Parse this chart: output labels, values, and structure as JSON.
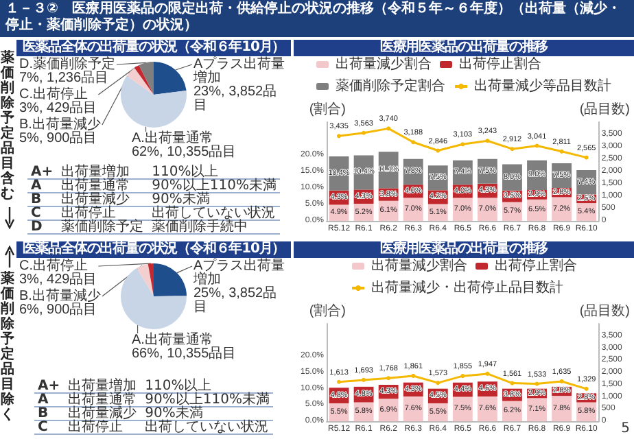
{
  "chart_data": [
    {
      "type": "pie",
      "title": "１－３②　医療用医薬品の限定出荷・供給停止の状況の推移（令和５年～６年度）（出荷量（減少・停止・薬価削除予定）の状況）",
      "subtitle": "医薬品全体の出荷量の状況（令和６年10月）",
      "categories": [
        "Aプラス出荷量増加",
        "A.出荷量通常",
        "B.出荷量減少",
        "C.出荷停止",
        "D.薬価削除予定"
      ],
      "values": [
        3852,
        10355,
        900,
        429,
        1236
      ],
      "value_labels": [
        "23%, 3,852品目",
        "62%, 10,355品目",
        "5%, 900品目",
        "3%, 429品目",
        "7%, 1,236品目"
      ],
      "colors": [
        "#1f4e8c",
        "#c8d5e6",
        "#f4cfd0",
        "#c5282f",
        "#7f7f7f"
      ],
      "annotations": [
        "薬価削除予定品目含む",
        "A+",
        "出荷量増加",
        "110%以上",
        "A",
        "出荷量通常",
        "90%以上110%未満",
        "B",
        "出荷量減少",
        "90%未満",
        "C",
        "出荷停止",
        "出荷していない状況",
        "D",
        "薬価削除予定",
        "薬価削除手続中"
      ]
    },
    {
      "type": "bar",
      "title": "医療用医薬品の出荷量の推移",
      "stacked": true,
      "legend": "top",
      "grid": false,
      "ylabel": "(割合)",
      "y2label": "(品目数)",
      "categories": [
        "R5.12",
        "R6.1",
        "R6.2",
        "R6.3",
        "R6.4",
        "R6.5",
        "R6.6",
        "R6.7",
        "R6.8",
        "R6.9",
        "R6.10"
      ],
      "ylim": [
        0,
        30
      ],
      "yticks": [
        {
          "value": 0,
          "label": "0.0%"
        },
        {
          "value": 5,
          "label": "5.0%"
        },
        {
          "value": 10,
          "label": "10.0%"
        },
        {
          "value": 15,
          "label": "15.0%"
        },
        {
          "value": 20,
          "label": "20.0%"
        }
      ],
      "y2lim": [
        0,
        4000
      ],
      "y2ticks": [
        0,
        {
          "value": 500,
          "label": "500"
        },
        {
          "value": 1000,
          "label": "1,000"
        },
        {
          "value": 1500,
          "label": "1,500"
        },
        {
          "value": 2000,
          "label": "2,000"
        },
        {
          "value": 2500,
          "label": "2,500"
        },
        {
          "value": 3000,
          "label": "3,000"
        },
        {
          "value": 3500,
          "label": "3,500"
        }
      ],
      "series": [
        {
          "name": "出荷量減少割合",
          "color": "#f4c7cb",
          "values": [
            4.9,
            5.2,
            6.1,
            7.0,
            5.1,
            7.0,
            7.0,
            5.7,
            6.5,
            7.2,
            5.4
          ],
          "value_labels": [
            "4.9%",
            "5.2%",
            "6.1%",
            "7.0%",
            "5.1%",
            "7.0%",
            "7.0%",
            "5.7%",
            "6.5%",
            "7.2%",
            "5.4%"
          ]
        },
        {
          "name": "出荷停止割合",
          "color": "#c0282d",
          "values": [
            4.3,
            4.3,
            3.8,
            4.0,
            4.2,
            4.0,
            4.3,
            3.5,
            2.9,
            2.8,
            2.6
          ],
          "value_labels": [
            "4.3%",
            "4.3%",
            "3.8%",
            "4.0%",
            "4.2%",
            "4.0%",
            "4.3%",
            "3.5%",
            "2.9%",
            "2.8%",
            "2.6%"
          ]
        },
        {
          "name": "薬価削除予定割合",
          "color": "#7f7f7f",
          "values": [
            10.4,
            10.4,
            11.1,
            7.8,
            7.5,
            7.4,
            7.5,
            8.0,
            9.0,
            7.5,
            7.4
          ],
          "value_labels": [
            "10.4%",
            "10.4%",
            "11.1%",
            "7.8%",
            "7.5%",
            "7.4%",
            "7.5%",
            "8.0%",
            "9.0%",
            "7.5%",
            "7.4%"
          ]
        },
        {
          "name": "出荷量減少等品目数計",
          "type": "line",
          "axis": "y2",
          "marker": "circle",
          "color": "#f5b800",
          "values": [
            3435,
            3563,
            3740,
            3188,
            2846,
            3103,
            3243,
            2912,
            3041,
            2811,
            2565
          ],
          "value_labels": [
            "3,435",
            "3,563",
            "3,740",
            "3,188",
            "2,846",
            "3,103",
            "3,243",
            "2,912",
            "3,041",
            "2,811",
            "2,565"
          ]
        }
      ]
    },
    {
      "type": "pie",
      "title": "医薬品全体の出荷量の状況（令和６年10月）",
      "categories": [
        "Aプラス出荷量増加",
        "A.出荷量通常",
        "B.出荷量減少",
        "C.出荷停止"
      ],
      "values": [
        3852,
        10355,
        900,
        429
      ],
      "value_labels": [
        "25%, 3,852品目",
        "66%, 10,355品目",
        "6%, 900品目",
        "3%, 429品目"
      ],
      "colors": [
        "#1f4e8c",
        "#c8d5e6",
        "#f4cfd0",
        "#c5282f"
      ],
      "annotations": [
        "薬価削除予定品目除く",
        "A+",
        "出荷量増加",
        "110%以上",
        "A",
        "出荷量通常",
        "90%以上110%未満",
        "B",
        "出荷量減少",
        "90%未満",
        "C",
        "出荷停止",
        "出荷していない状況"
      ]
    },
    {
      "type": "bar",
      "title": "医療用医薬品の出荷量の推移",
      "stacked": true,
      "legend": "top",
      "grid": false,
      "ylabel": "(割合)",
      "y2label": "(品目数)",
      "categories": [
        "R5.12",
        "R6.1",
        "R6.2",
        "R6.3",
        "R6.4",
        "R6.5",
        "R6.6",
        "R6.7",
        "R6.8",
        "R6.9",
        "R6.10"
      ],
      "ylim": [
        0,
        30
      ],
      "yticks": [
        {
          "value": 0,
          "label": "0.0%"
        },
        {
          "value": 5,
          "label": "5.0%"
        },
        {
          "value": 10,
          "label": "10.0%"
        },
        {
          "value": 15,
          "label": "15.0%"
        },
        {
          "value": 20,
          "label": "20.0%"
        }
      ],
      "y2lim": [
        0,
        4000
      ],
      "y2ticks": [
        0,
        {
          "value": 500,
          "label": "500"
        },
        {
          "value": 1000,
          "label": "1,000"
        },
        {
          "value": 1500,
          "label": "1,500"
        },
        {
          "value": 2000,
          "label": "2,000"
        },
        {
          "value": 2500,
          "label": "2,500"
        },
        {
          "value": 3000,
          "label": "3,000"
        },
        {
          "value": 3500,
          "label": "3,500"
        }
      ],
      "series": [
        {
          "name": "出荷量減少割合",
          "color": "#f4c7cb",
          "values": [
            5.5,
            5.8,
            6.9,
            7.6,
            5.5,
            7.5,
            7.6,
            6.2,
            7.1,
            7.8,
            5.8
          ],
          "value_labels": [
            "5.5%",
            "5.8%",
            "6.9%",
            "7.6%",
            "5.5%",
            "7.5%",
            "7.6%",
            "6.2%",
            "7.1%",
            "7.8%",
            "5.8%"
          ]
        },
        {
          "name": "出荷停止割合",
          "color": "#c0282d",
          "values": [
            4.8,
            4.8,
            4.3,
            4.3,
            4.5,
            4.4,
            4.6,
            3.8,
            2.9,
            2.8,
            2.8
          ],
          "value_labels": [
            "4.8%",
            "4.8%",
            "4.3%",
            "4.3%",
            "4.5%",
            "4.4%",
            "4.6%",
            "3.8%",
            "2.9%",
            "2.8%",
            "2.8%"
          ]
        },
        {
          "name": "出荷量減少・出荷停止品目数計",
          "type": "line",
          "axis": "y2",
          "marker": "circle",
          "color": "#f5b800",
          "values": [
            1613,
            1693,
            1768,
            1861,
            1573,
            1855,
            1947,
            1561,
            1533,
            1635,
            1329
          ],
          "value_labels": [
            "1,613",
            "1,693",
            "1,768",
            "1,861",
            "1,573",
            "1,855",
            "1,947",
            "1,561",
            "1,533",
            "1,635",
            "1,329"
          ]
        }
      ],
      "annotations": [
        "5"
      ]
    }
  ]
}
